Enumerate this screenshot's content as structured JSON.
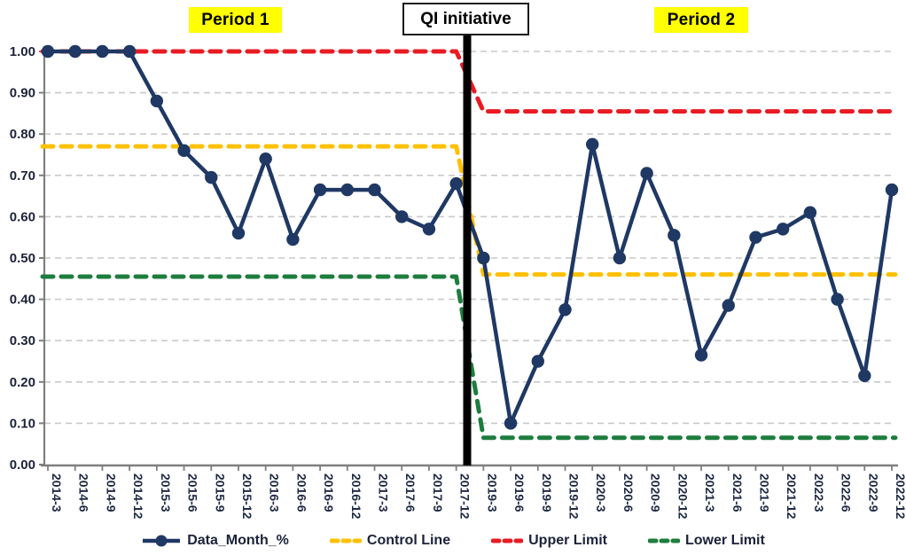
{
  "annotations": {
    "period1_label": "Period 1",
    "qi_label": "QI initiative",
    "period2_label": "Period 2",
    "highlight_color": "#ffff00",
    "vline_color": "#000000"
  },
  "chart_data": {
    "type": "line",
    "title": "",
    "xlabel": "",
    "ylabel": "",
    "categories": [
      "2014-3",
      "2014-6",
      "2014-9",
      "2014-12",
      "2015-3",
      "2015-6",
      "2015-9",
      "2015-12",
      "2016-3",
      "2016-6",
      "2016-9",
      "2016-12",
      "2017-3",
      "2017-6",
      "2017-9",
      "2017-12",
      "2019-3",
      "2019-6",
      "2019-9",
      "2019-12",
      "2020-3",
      "2020-6",
      "2020-9",
      "2020-12",
      "2021-3",
      "2021-6",
      "2021-9",
      "2021-12",
      "2022-3",
      "2022-6",
      "2022-9",
      "2022-12"
    ],
    "series": [
      {
        "name": "Data_Month_%",
        "style": "solid-with-markers",
        "color": "#1f3864",
        "values": [
          1.0,
          1.0,
          1.0,
          1.0,
          0.88,
          0.76,
          0.695,
          0.56,
          0.74,
          0.545,
          0.665,
          0.665,
          0.665,
          0.6,
          0.57,
          0.68,
          0.5,
          0.1,
          0.25,
          0.375,
          0.775,
          0.5,
          0.705,
          0.555,
          0.265,
          0.385,
          0.55,
          0.57,
          0.61,
          0.4,
          0.215,
          0.665
        ]
      },
      {
        "name": "Control Line",
        "style": "dashed",
        "color": "#ffc000",
        "values": [
          0.77,
          0.77,
          0.77,
          0.77,
          0.77,
          0.77,
          0.77,
          0.77,
          0.77,
          0.77,
          0.77,
          0.77,
          0.77,
          0.77,
          0.77,
          0.77,
          0.46,
          0.46,
          0.46,
          0.46,
          0.46,
          0.46,
          0.46,
          0.46,
          0.46,
          0.46,
          0.46,
          0.46,
          0.46,
          0.46,
          0.46,
          0.46
        ]
      },
      {
        "name": "Upper Limit",
        "style": "dashed",
        "color": "#e81b23",
        "values": [
          1.0,
          1.0,
          1.0,
          1.0,
          1.0,
          1.0,
          1.0,
          1.0,
          1.0,
          1.0,
          1.0,
          1.0,
          1.0,
          1.0,
          1.0,
          1.0,
          0.855,
          0.855,
          0.855,
          0.855,
          0.855,
          0.855,
          0.855,
          0.855,
          0.855,
          0.855,
          0.855,
          0.855,
          0.855,
          0.855,
          0.855,
          0.855
        ]
      },
      {
        "name": "Lower Limit",
        "style": "dashed",
        "color": "#1e7d3e",
        "values": [
          0.455,
          0.455,
          0.455,
          0.455,
          0.455,
          0.455,
          0.455,
          0.455,
          0.455,
          0.455,
          0.455,
          0.455,
          0.455,
          0.455,
          0.455,
          0.455,
          0.065,
          0.065,
          0.065,
          0.065,
          0.065,
          0.065,
          0.065,
          0.065,
          0.065,
          0.065,
          0.065,
          0.065,
          0.065,
          0.065,
          0.065,
          0.065
        ]
      }
    ],
    "ylim": [
      0.0,
      1.0
    ],
    "y_tick_labels": [
      "0.00",
      "0.10",
      "0.20",
      "0.30",
      "0.40",
      "0.50",
      "0.60",
      "0.70",
      "0.80",
      "0.90",
      "1.00"
    ],
    "grid": "horizontal dashed gridlines",
    "legend_position": "bottom",
    "vline": {
      "label": "QI initiative",
      "between": [
        "2017-12",
        "2019-3"
      ]
    }
  }
}
